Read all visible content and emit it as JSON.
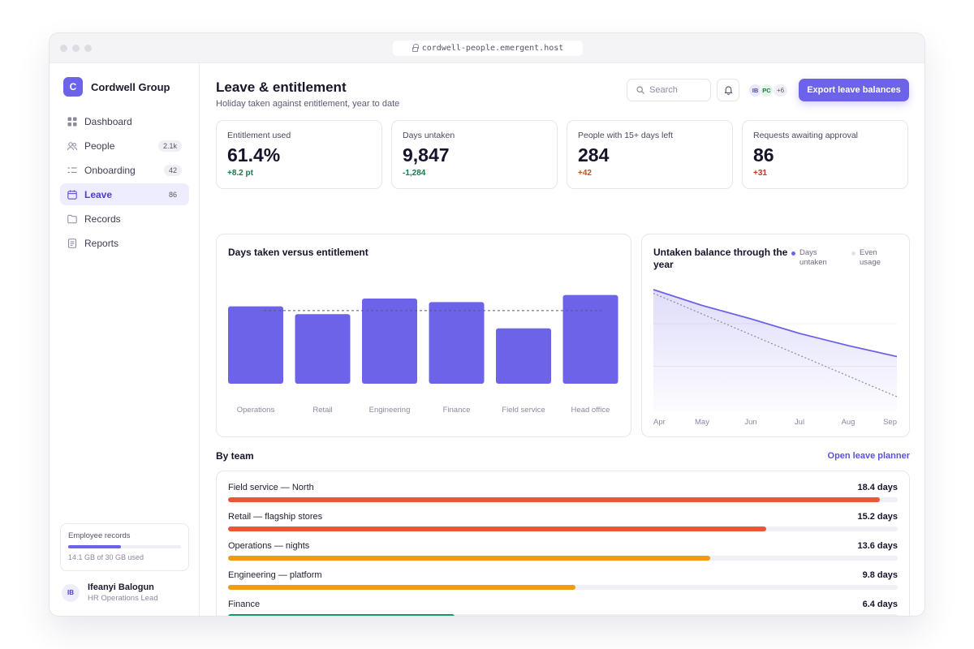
{
  "browser": {
    "url": "cordwell-people.emergent.host"
  },
  "sidebar": {
    "brand": {
      "logo_letter": "C",
      "name": "Cordwell Group",
      "accent": "#6c63e8"
    },
    "items": [
      {
        "label": "Dashboard",
        "icon": "grid-icon",
        "badge": ""
      },
      {
        "label": "People",
        "icon": "users-icon",
        "badge": "2.1k"
      },
      {
        "label": "Onboarding",
        "icon": "list-icon",
        "badge": "42"
      },
      {
        "label": "Leave",
        "icon": "calendar-icon",
        "badge": "86",
        "active": true
      },
      {
        "label": "Records",
        "icon": "folder-icon",
        "badge": ""
      },
      {
        "label": "Reports",
        "icon": "document-icon",
        "badge": ""
      }
    ],
    "storage": {
      "title": "Employee records",
      "used_gb": 14.1,
      "total_gb": 30,
      "text": "14.1 GB of 30 GB used"
    },
    "user": {
      "initials": "IB",
      "name": "Ifeanyi Balogun",
      "role": "HR Operations Lead"
    }
  },
  "header": {
    "title": "Leave & entitlement",
    "subtitle": "Holiday taken against entitlement, year to date",
    "search_placeholder": "Search",
    "avatars": [
      {
        "initials": "IB",
        "bg": "#e9e7fb",
        "fg": "#4a41c8"
      },
      {
        "initials": "PC",
        "bg": "#e2f4ea",
        "fg": "#1d7a45"
      }
    ],
    "avatars_more": "+6",
    "export_label": "Export leave balances"
  },
  "kpis": [
    {
      "label": "Entitlement used",
      "value": "61.4%",
      "delta": "+8.2 pt",
      "delta_color": "#137a4a"
    },
    {
      "label": "Days untaken",
      "value": "9,847",
      "delta": "-1,284",
      "delta_color": "#137a4a"
    },
    {
      "label": "People with 15+ days left",
      "value": "284",
      "delta": "+42",
      "delta_color": "#c0521f"
    },
    {
      "label": "Requests awaiting approval",
      "value": "86",
      "delta": "+31",
      "delta_color": "#c0342a"
    }
  ],
  "chart_data": [
    {
      "type": "bar",
      "title": "Days taken versus entitlement",
      "categories": [
        "Operations",
        "Retail",
        "Engineering",
        "Finance",
        "Field service",
        "Head office"
      ],
      "values": [
        10.9,
        9.8,
        12.0,
        11.5,
        7.8,
        12.5
      ],
      "reference_line": 10.3,
      "ylim": [
        0,
        16
      ],
      "grid": false,
      "bar_color": "#6c63e8"
    },
    {
      "type": "area",
      "title": "Untaken balance through the year",
      "legend": [
        "Days untaken",
        "Even usage"
      ],
      "legend_position": "top-right",
      "x": [
        "Apr",
        "May",
        "Jun",
        "Jul",
        "Aug",
        "Sep"
      ],
      "series": [
        {
          "name": "Days untaken",
          "values": [
            88,
            75,
            64,
            52,
            42,
            33
          ],
          "color": "#6c63e8"
        },
        {
          "name": "Even usage",
          "values": [
            85,
            68,
            51,
            34,
            17,
            0
          ],
          "color": "#8a89a0",
          "dashed": true
        }
      ],
      "ylim": [
        -12,
        100
      ],
      "grid": true
    }
  ],
  "teams": {
    "title": "By team",
    "link": "Open leave planner",
    "max": 18.9,
    "rows": [
      {
        "name": "Field service — North",
        "value_label": "18.4 days",
        "value": 18.4,
        "color": "#ea5636"
      },
      {
        "name": "Retail — flagship stores",
        "value_label": "15.2 days",
        "value": 15.2,
        "color": "#ea5636"
      },
      {
        "name": "Operations — nights",
        "value_label": "13.6 days",
        "value": 13.6,
        "color": "#f29b12"
      },
      {
        "name": "Engineering — platform",
        "value_label": "9.8 days",
        "value": 9.8,
        "color": "#f29b12"
      },
      {
        "name": "Finance",
        "value_label": "6.4 days",
        "value": 6.4,
        "color": "#149a64"
      }
    ]
  }
}
